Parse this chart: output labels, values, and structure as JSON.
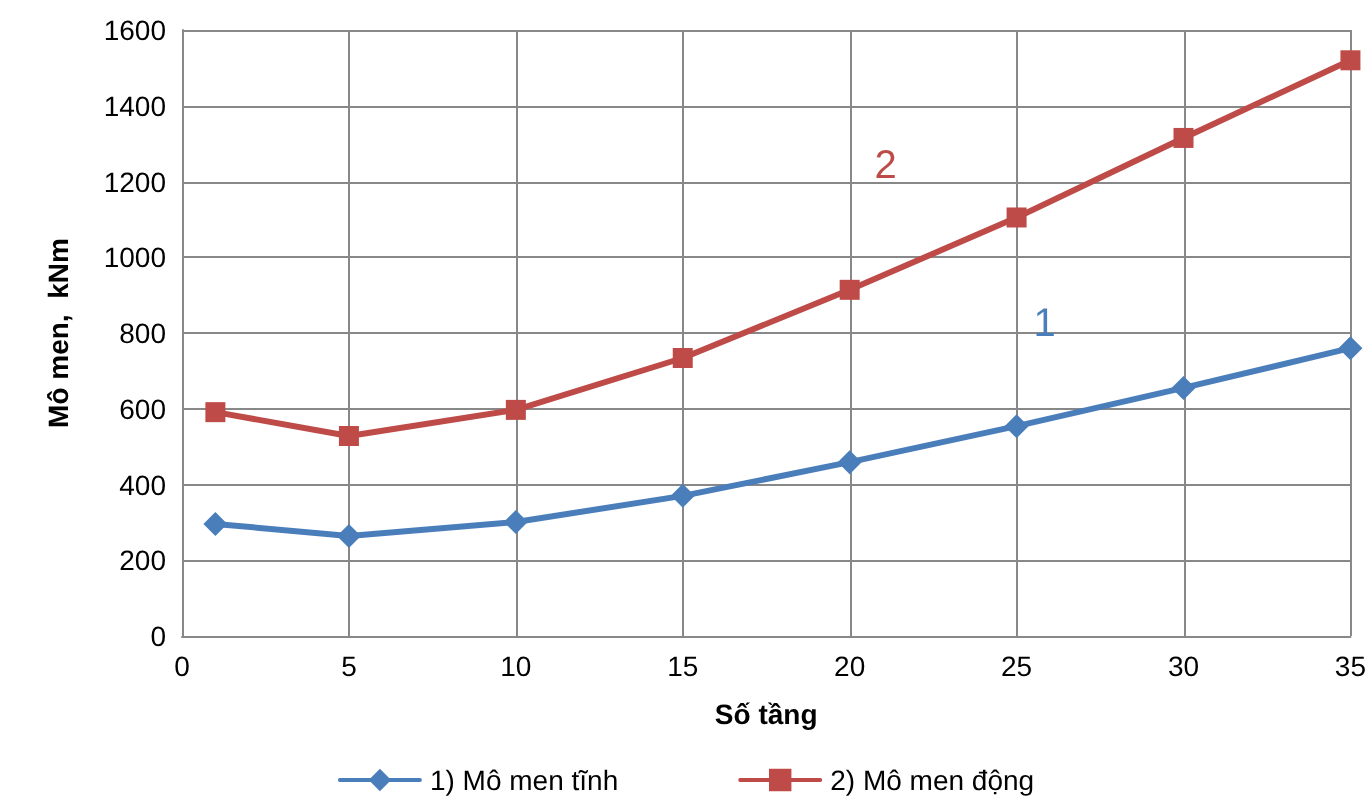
{
  "chart_data": {
    "type": "line",
    "xlabel": "Số tầng",
    "ylabel": "Mô men,  kNm",
    "x": [
      1,
      5,
      10,
      15,
      20,
      25,
      30,
      35
    ],
    "series": [
      {
        "name": "1) Mô men tĩnh",
        "color": "#4a7ebb",
        "marker": "diamond",
        "values": [
          296,
          264,
          301,
          370,
          459,
          554,
          655,
          760
        ]
      },
      {
        "name": "2) Mô men động",
        "color": "#be4b48",
        "marker": "square",
        "values": [
          591,
          528,
          597,
          734,
          914,
          1105,
          1315,
          1520
        ]
      }
    ],
    "annotations": [
      "1",
      "2"
    ],
    "xlim": [
      0,
      35
    ],
    "xticks": [
      0,
      5,
      10,
      15,
      20,
      25,
      30,
      35
    ],
    "ylim": [
      0,
      1600
    ],
    "yticks": [
      0,
      200,
      400,
      600,
      800,
      1000,
      1200,
      1400,
      1600
    ],
    "grid": true,
    "legend": "bottom",
    "line_style": "solid"
  }
}
